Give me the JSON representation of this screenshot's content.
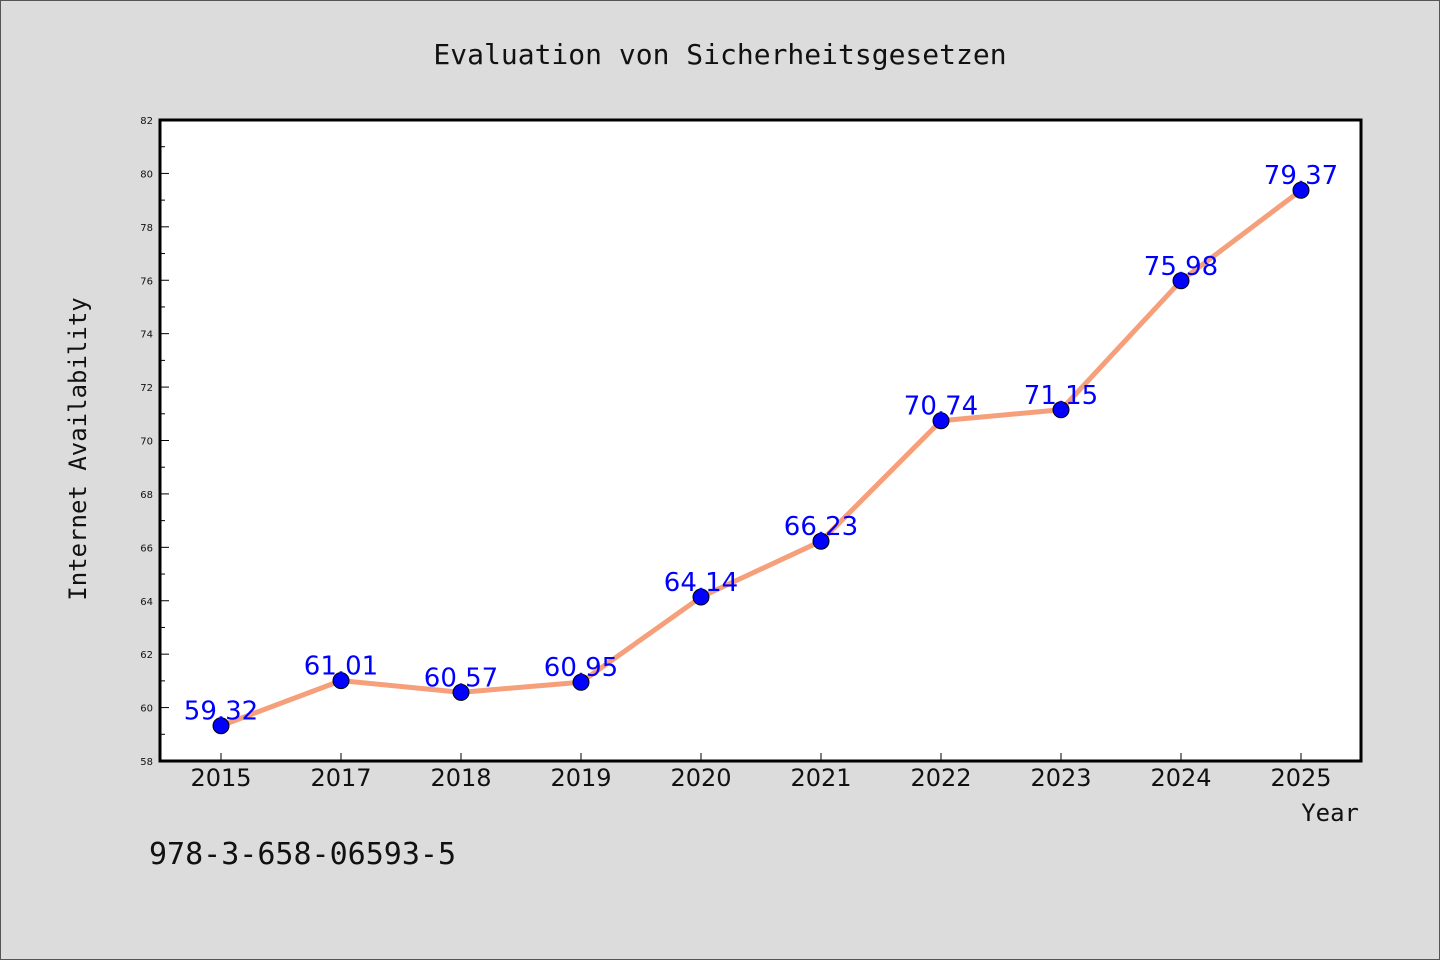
{
  "chart_data": {
    "type": "line",
    "title": "Evaluation von Sicherheitsgesetzen",
    "xlabel": "Year",
    "ylabel": "Internet Availability",
    "categories": [
      "2015",
      "2017",
      "2018",
      "2019",
      "2020",
      "2021",
      "2022",
      "2023",
      "2024",
      "2025"
    ],
    "series": [
      {
        "values": [
          59.32,
          61.01,
          60.57,
          60.95,
          64.14,
          66.23,
          70.74,
          71.15,
          75.98,
          79.37
        ],
        "line_color": "#f5a07a",
        "marker_color": "#0000ff"
      }
    ],
    "ylim": [
      58,
      82
    ],
    "yticks": [
      "58",
      "60",
      "62",
      "64",
      "66",
      "68",
      "70",
      "72",
      "74",
      "76",
      "78",
      "80",
      "82"
    ],
    "data_labels": [
      "59.32",
      "61.01",
      "60.57",
      "60.95",
      "64.14",
      "66.23",
      "70.74",
      "71.15",
      "75.98",
      "79.37"
    ],
    "grid": false,
    "background": "#dcdcdc",
    "plot_background": "#ffffff",
    "label_color": "#0000ff"
  },
  "footer": {
    "isbn": "978-3-658-06593-5"
  }
}
